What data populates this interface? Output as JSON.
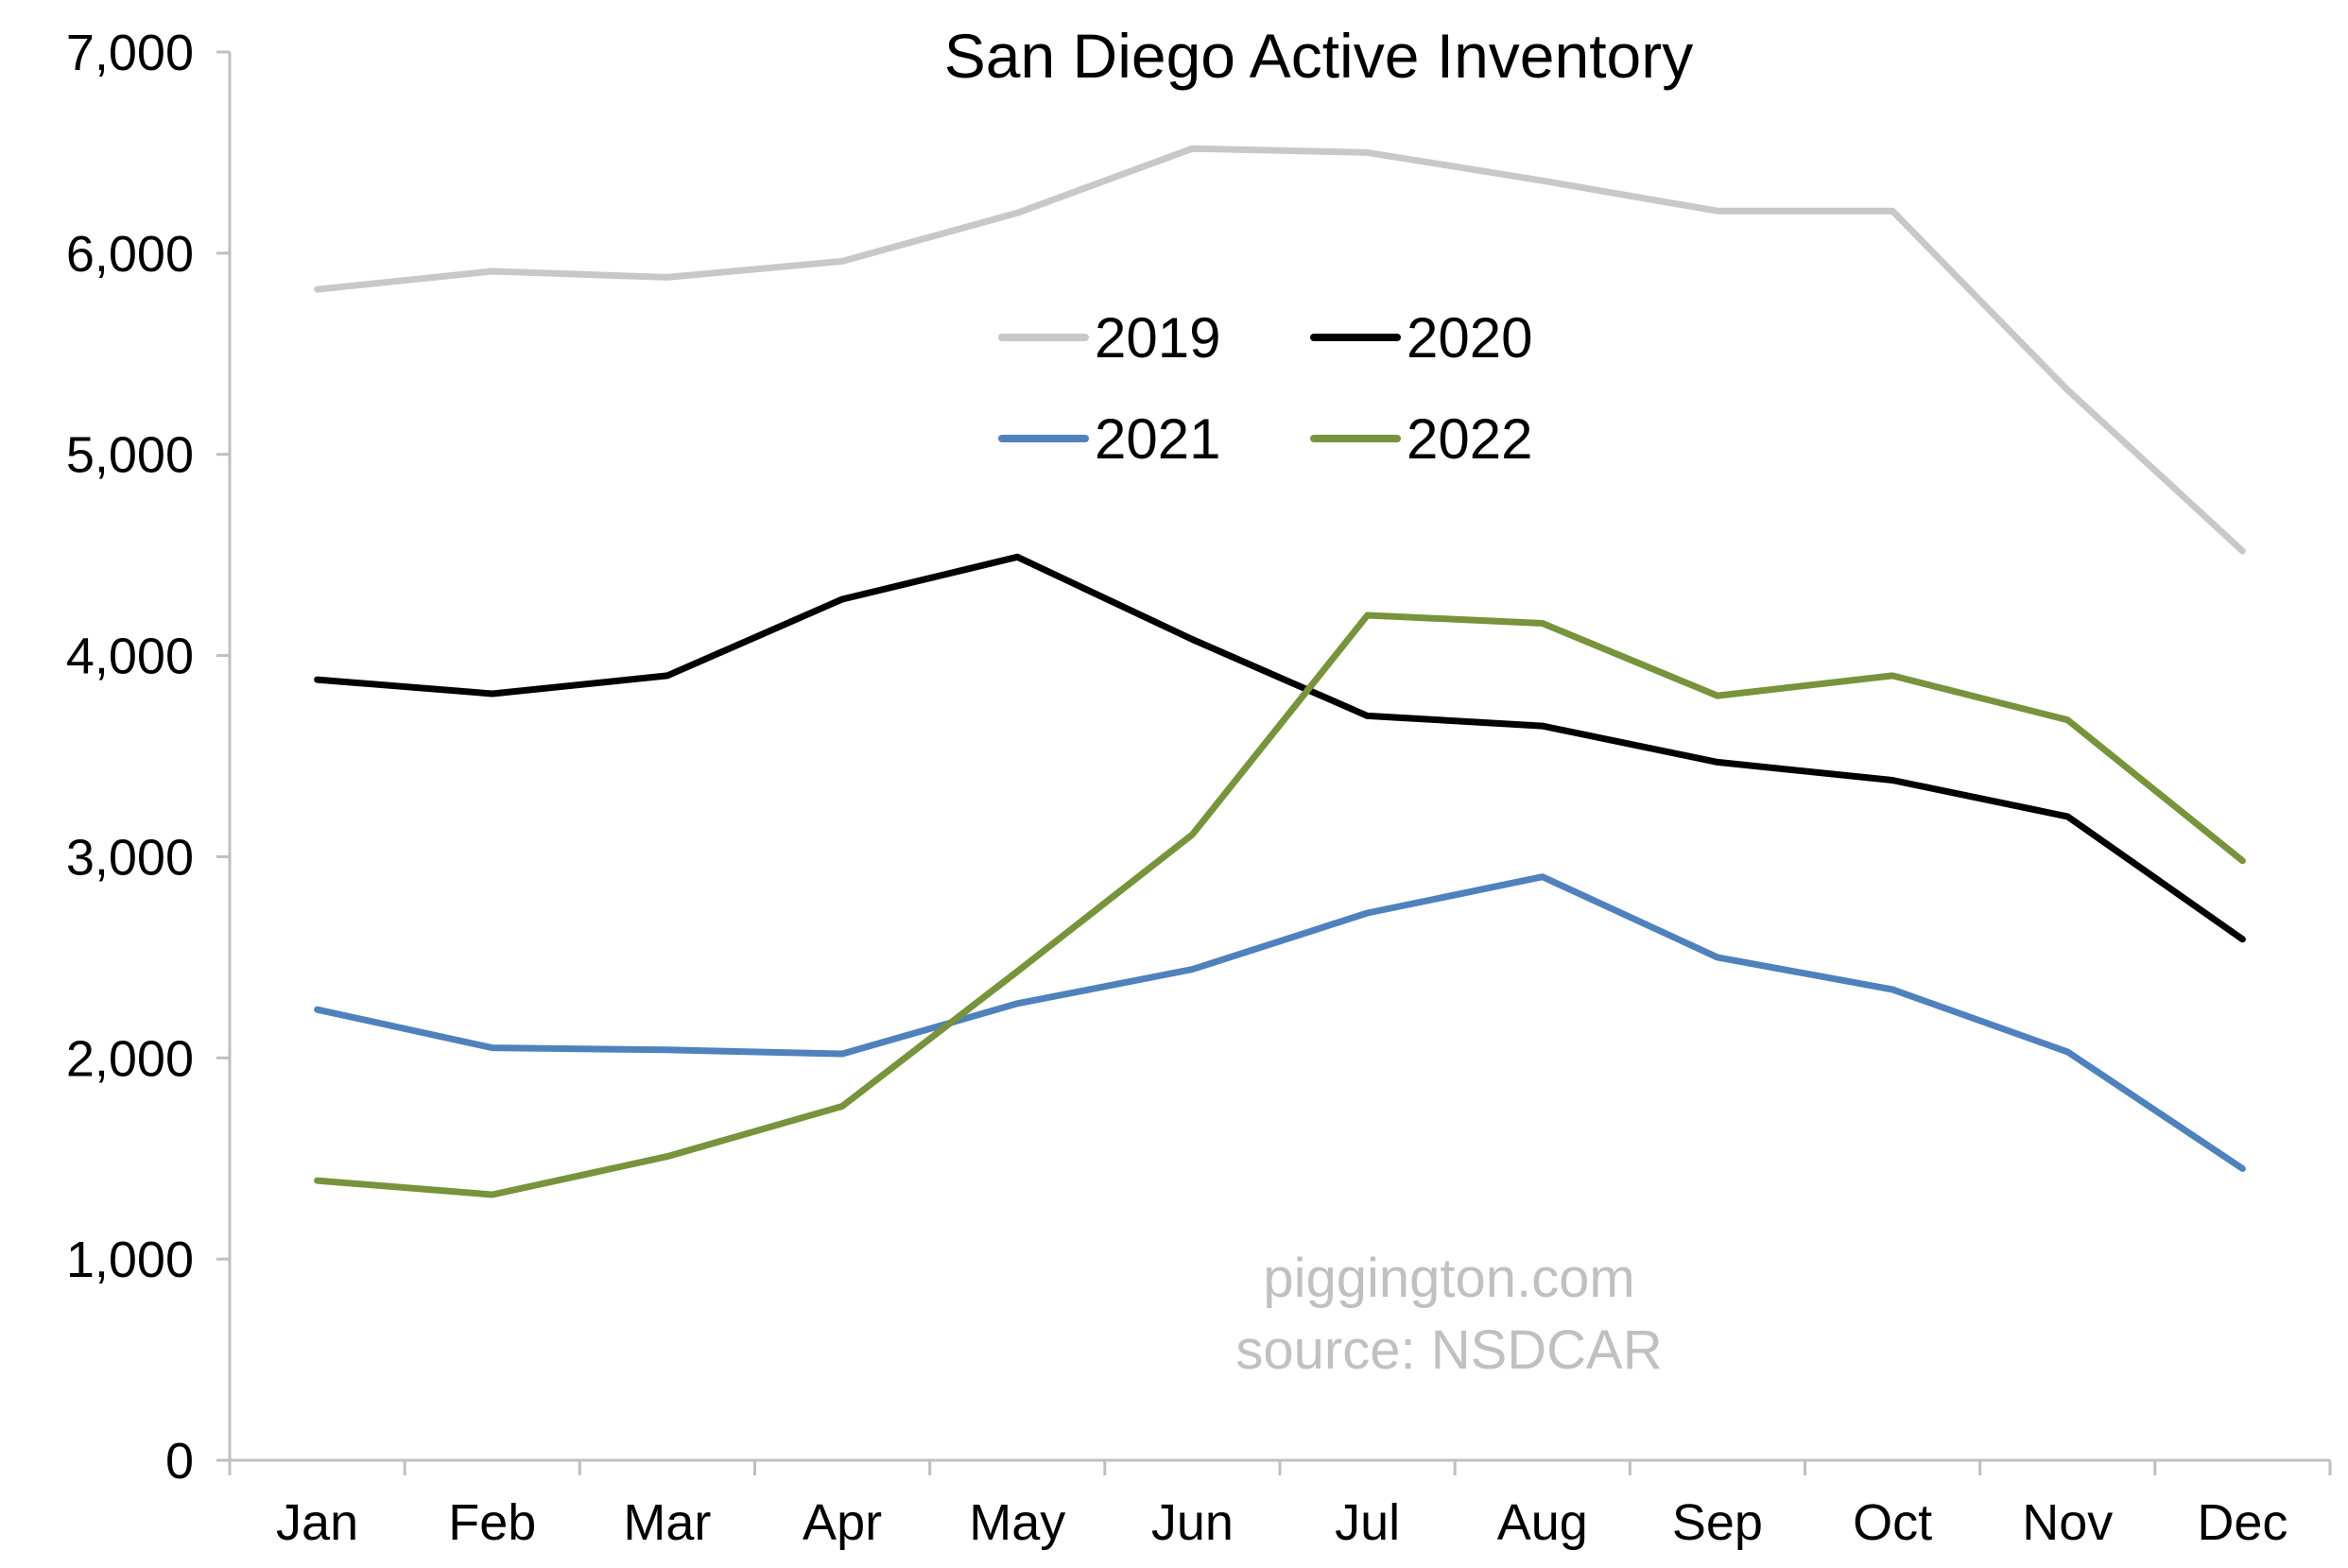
{
  "chart_data": {
    "type": "line",
    "title": "San Diego Active Inventory",
    "xlabel": "",
    "ylabel": "",
    "categories": [
      "Jan",
      "Feb",
      "Mar",
      "Apr",
      "May",
      "Jun",
      "Jul",
      "Aug",
      "Sep",
      "Oct",
      "Nov",
      "Dec"
    ],
    "ylim": [
      0,
      7000
    ],
    "yticks": [
      0,
      1000,
      2000,
      3000,
      4000,
      5000,
      6000,
      7000
    ],
    "ytick_labels": [
      "0",
      "1,000",
      "2,000",
      "3,000",
      "4,000",
      "5,000",
      "6,000",
      "7,000"
    ],
    "grid": false,
    "legend": {
      "placement": "top-center",
      "columns": 2
    },
    "series": [
      {
        "name": "2019",
        "color": "#c8c8c8",
        "values": [
          5820,
          5910,
          5880,
          5960,
          6200,
          6520,
          6500,
          6360,
          6210,
          6210,
          5320,
          4520
        ]
      },
      {
        "name": "2020",
        "color": "#000000",
        "values": [
          3880,
          3810,
          3900,
          4280,
          4490,
          4080,
          3700,
          3650,
          3470,
          3380,
          3200,
          2590
        ]
      },
      {
        "name": "2021",
        "color": "#4f81bd",
        "values": [
          2240,
          2050,
          2040,
          2020,
          2270,
          2440,
          2720,
          2900,
          2500,
          2340,
          2030,
          1450
        ]
      },
      {
        "name": "2022",
        "color": "#77933c",
        "values": [
          1390,
          1320,
          1510,
          1760,
          2430,
          3110,
          4200,
          4160,
          3800,
          3900,
          3680,
          2980
        ]
      }
    ],
    "annotations": [
      {
        "text": "piggington.com",
        "color": "#c0c0c0"
      },
      {
        "text": "source: NSDCAR",
        "color": "#c0c0c0"
      }
    ]
  }
}
